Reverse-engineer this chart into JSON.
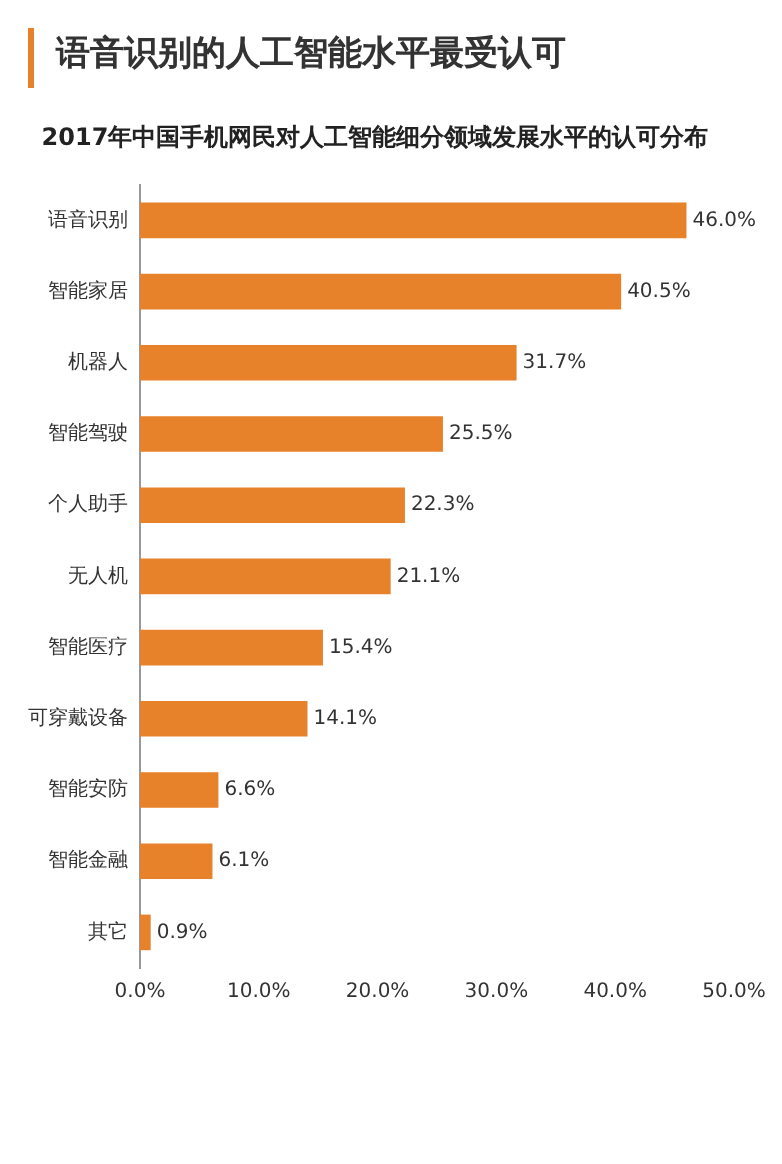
{
  "chart_data": {
    "type": "bar",
    "orientation": "horizontal",
    "title": "语音识别的人工智能水平最受认可",
    "subtitle": "2017年中国手机网民对人工智能细分领域发展水平的认可分布",
    "categories": [
      "语音识别",
      "智能家居",
      "机器人",
      "智能驾驶",
      "个人助手",
      "无人机",
      "智能医疗",
      "可穿戴设备",
      "智能安防",
      "智能金融",
      "其它"
    ],
    "values": [
      46.0,
      40.5,
      31.7,
      25.5,
      22.3,
      21.1,
      15.4,
      14.1,
      6.6,
      6.1,
      0.9
    ],
    "value_labels": [
      "46.0%",
      "40.5%",
      "31.7%",
      "25.5%",
      "22.3%",
      "21.1%",
      "15.4%",
      "14.1%",
      "6.6%",
      "6.1%",
      "0.9%"
    ],
    "color": "#e8822a",
    "xlim": [
      0,
      50
    ],
    "xticks": [
      {
        "value": 0,
        "label": "0.0%"
      },
      {
        "value": 10,
        "label": "10.0%"
      },
      {
        "value": 20,
        "label": "20.0%"
      },
      {
        "value": 30,
        "label": "30.0%"
      },
      {
        "value": 40,
        "label": "40.0%"
      },
      {
        "value": 50,
        "label": "50.0%"
      }
    ],
    "grid": false,
    "legend": false
  }
}
